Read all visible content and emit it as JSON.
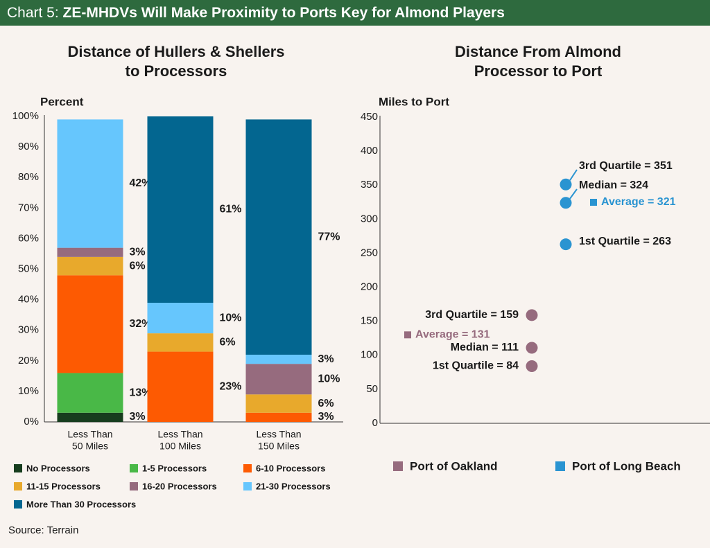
{
  "header": {
    "prefix": "Chart 5: ",
    "title": "ZE-MHDVs Will Make Proximity to Ports Key for Almond Players"
  },
  "source": "Source: Terrain",
  "colors": {
    "no_processors": "#173d1e",
    "p1_5": "#49b847",
    "p6_10": "#fd5a02",
    "p11_15": "#e8a92c",
    "p16_20": "#966b7e",
    "p21_30": "#66c6fd",
    "p30_plus": "#036690",
    "oakland": "#966b7e",
    "long_beach": "#2a94d1",
    "text": "#1a1a1a",
    "axis": "#333333"
  },
  "chart_data": [
    {
      "type": "bar",
      "stacked": true,
      "title_lines": [
        "Distance of Hullers & Shellers",
        "to Processors"
      ],
      "ylabel": "Percent",
      "ylim": [
        0,
        100
      ],
      "y_ticks": [
        "0%",
        "10%",
        "20%",
        "30%",
        "40%",
        "50%",
        "60%",
        "70%",
        "80%",
        "90%",
        "100%"
      ],
      "categories": [
        [
          "Less Than",
          "50 Miles"
        ],
        [
          "Less Than",
          "100 Miles"
        ],
        [
          "Less Than",
          "150 Miles"
        ]
      ],
      "series": [
        {
          "name": "No Processors",
          "color_key": "no_processors",
          "values": [
            3,
            0,
            0
          ]
        },
        {
          "name": "1-5 Processors",
          "color_key": "p1_5",
          "values": [
            13,
            0,
            0
          ]
        },
        {
          "name": "6-10 Processors",
          "color_key": "p6_10",
          "values": [
            32,
            23,
            3
          ]
        },
        {
          "name": "11-15 Processors",
          "color_key": "p11_15",
          "values": [
            6,
            6,
            6
          ]
        },
        {
          "name": "16-20 Processors",
          "color_key": "p16_20",
          "values": [
            3,
            0,
            10
          ]
        },
        {
          "name": "21-30 Processors",
          "color_key": "p21_30",
          "values": [
            42,
            10,
            3
          ]
        },
        {
          "name": "More Than 30 Processors",
          "color_key": "p30_plus",
          "values": [
            0,
            61,
            77
          ]
        }
      ],
      "legend": {
        "placement": "bottom"
      }
    },
    {
      "type": "scatter",
      "title_lines": [
        "Distance From Almond",
        "Processor to Port"
      ],
      "ylabel": "Miles to Port",
      "ylim": [
        0,
        450
      ],
      "y_ticks": [
        0,
        50,
        100,
        150,
        200,
        250,
        300,
        350,
        400,
        450
      ],
      "series": [
        {
          "name": "Port of Oakland",
          "color_key": "oakland",
          "points": [
            {
              "label": "3rd Quartile = 159",
              "y": 159
            },
            {
              "label": "Median = 111",
              "y": 111
            },
            {
              "label": "1st Quartile = 84",
              "y": 84
            }
          ],
          "average": {
            "label": "Average = 131",
            "y": 131
          }
        },
        {
          "name": "Port of Long Beach",
          "color_key": "long_beach",
          "points": [
            {
              "label": "3rd Quartile = 351",
              "y": 351
            },
            {
              "label": "Median = 324",
              "y": 324
            },
            {
              "label": "1st Quartile = 263",
              "y": 263
            }
          ],
          "average": {
            "label": "Average = 321",
            "y": 321
          }
        }
      ],
      "legend": {
        "placement": "bottom"
      }
    }
  ]
}
